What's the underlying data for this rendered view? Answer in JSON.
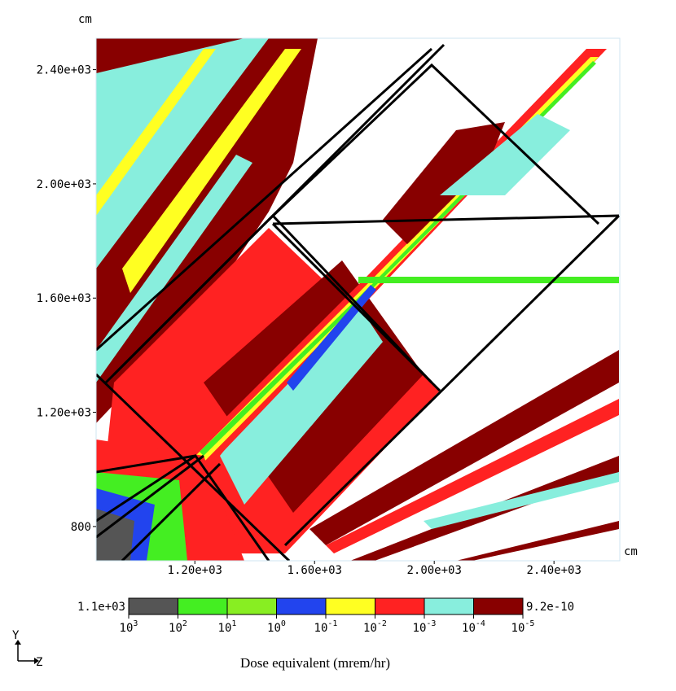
{
  "chart_data": {
    "type": "heatmap",
    "title": "",
    "x_unit": "cm",
    "y_unit": "cm",
    "xlim": [
      870,
      2620
    ],
    "ylim": [
      680,
      2510
    ],
    "x_ticks": [
      {
        "value": 1200,
        "label": "1.20e+03"
      },
      {
        "value": 1600,
        "label": "1.60e+03"
      },
      {
        "value": 2000,
        "label": "2.00e+03"
      },
      {
        "value": 2400,
        "label": "2.40e+03"
      }
    ],
    "y_ticks": [
      {
        "value": 2400,
        "label": "2.40e+03"
      },
      {
        "value": 2000,
        "label": "2.00e+03"
      },
      {
        "value": 1600,
        "label": "1.60e+03"
      },
      {
        "value": 1200,
        "label": "1.20e+03"
      },
      {
        "value": 800,
        "label": "800"
      }
    ],
    "colorbar": {
      "max_label": "1.1e+03",
      "min_label": "9.2e-10",
      "bin_colors": [
        "#555555",
        "#44ee22",
        "#88ee22",
        "#2244ee",
        "#ffff22",
        "#ff2222",
        "#88eedd",
        "#880000"
      ],
      "bin_edges": [
        {
          "base": "10",
          "exp": "3"
        },
        {
          "base": "10",
          "exp": "2"
        },
        {
          "base": "10",
          "exp": "1"
        },
        {
          "base": "10",
          "exp": "0"
        },
        {
          "base": "10",
          "exp": "-1"
        },
        {
          "base": "10",
          "exp": "-2"
        },
        {
          "base": "10",
          "exp": "-3"
        },
        {
          "base": "10",
          "exp": "-4"
        },
        {
          "base": "10",
          "exp": "-5"
        }
      ],
      "label": "Dose equivalent (mrem/hr)"
    },
    "axes_indicator": {
      "vertical": "Y",
      "horizontal": "Z"
    }
  }
}
